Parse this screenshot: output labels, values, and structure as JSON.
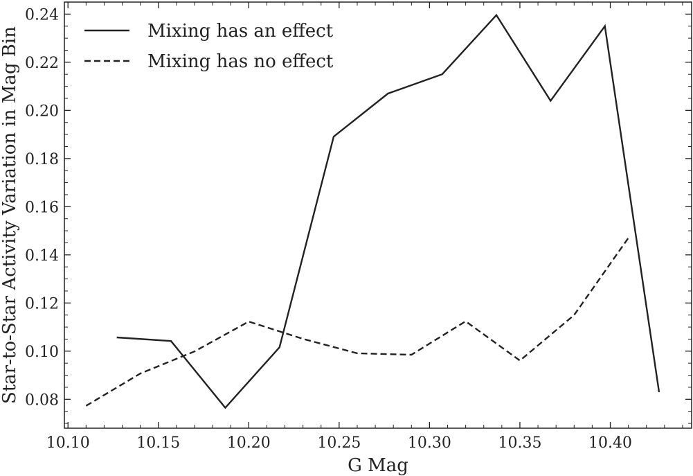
{
  "chart_data": {
    "type": "line",
    "xlabel": "G Mag",
    "ylabel": "Star-to-Star Activity Variation in Mag Bin",
    "xlim": [
      10.098,
      10.445
    ],
    "ylim": [
      0.068,
      0.245
    ],
    "xticks": [
      10.1,
      10.15,
      10.2,
      10.25,
      10.3,
      10.35,
      10.4
    ],
    "xtick_labels": [
      "10.10",
      "10.15",
      "10.20",
      "10.25",
      "10.30",
      "10.35",
      "10.40"
    ],
    "yticks": [
      0.08,
      0.1,
      0.12,
      0.14,
      0.16,
      0.18,
      0.2,
      0.22,
      0.24
    ],
    "ytick_labels": [
      "0.08",
      "0.10",
      "0.12",
      "0.14",
      "0.16",
      "0.18",
      "0.20",
      "0.22",
      "0.24"
    ],
    "grid": false,
    "legend_position": "top-left",
    "series": [
      {
        "name": "Mixing has an effect",
        "style": "solid",
        "color": "#222222",
        "x": [
          10.127,
          10.157,
          10.187,
          10.217,
          10.247,
          10.277,
          10.307,
          10.337,
          10.367,
          10.397,
          10.427
        ],
        "y": [
          0.1057,
          0.1042,
          0.0765,
          0.1016,
          0.1891,
          0.207,
          0.215,
          0.2396,
          0.204,
          0.235,
          0.083
        ]
      },
      {
        "name": "Mixing has no effect",
        "style": "dashed",
        "color": "#222222",
        "x": [
          10.11,
          10.14,
          10.17,
          10.2,
          10.23,
          10.26,
          10.29,
          10.32,
          10.35,
          10.38,
          10.41
        ],
        "y": [
          0.0773,
          0.0907,
          0.0999,
          0.1123,
          0.1051,
          0.0991,
          0.0985,
          0.1124,
          0.0961,
          0.115,
          0.147
        ]
      }
    ]
  }
}
